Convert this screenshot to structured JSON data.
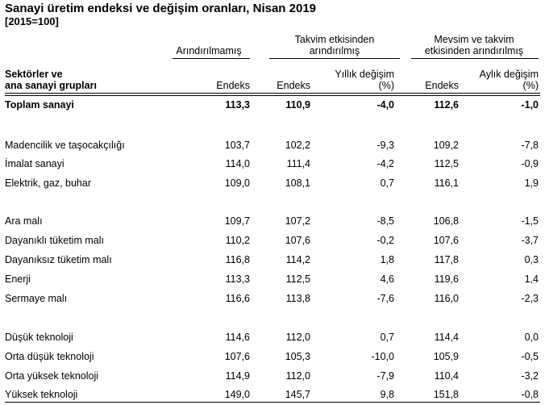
{
  "title": "Sanayi üretim endeksi ve değişim oranları, Nisan 2019",
  "subtitle": "[2015=100]",
  "groups": {
    "unadjusted": [
      "Arındırılmamış"
    ],
    "calendar": [
      "Takvim etkisinden",
      "arındırılmış"
    ],
    "seasonal": [
      "Mevsim ve takvim",
      "etkisinden arındırılmış"
    ]
  },
  "row_header": [
    "Sektörler ve",
    "ana sanayi grupları"
  ],
  "columns": {
    "c1": [
      "Endeks"
    ],
    "c2": [
      "Endeks"
    ],
    "c3": [
      "Yıllık değişim",
      "(%)"
    ],
    "c4": [
      "Endeks"
    ],
    "c5": [
      "Aylık değişim",
      "(%)"
    ]
  },
  "rows": [
    {
      "label": "Toplam sanayi",
      "v": [
        "113,3",
        "110,9",
        "-4,0",
        "112,6",
        "-1,0"
      ]
    },
    {
      "label": "Madencilik ve taşocakçılığı",
      "v": [
        "103,7",
        "102,2",
        "-9,3",
        "109,2",
        "-7,8"
      ]
    },
    {
      "label": "İmalat sanayi",
      "v": [
        "114,0",
        "111,4",
        "-4,2",
        "112,5",
        "-0,9"
      ]
    },
    {
      "label": "Elektrik, gaz, buhar",
      "v": [
        "109,0",
        "108,1",
        "0,7",
        "116,1",
        "1,9"
      ]
    },
    {
      "label": "Ara malı",
      "v": [
        "109,7",
        "107,2",
        "-8,5",
        "106,8",
        "-1,5"
      ]
    },
    {
      "label": "Dayanıklı tüketim malı",
      "v": [
        "110,2",
        "107,6",
        "-0,2",
        "107,6",
        "-3,7"
      ]
    },
    {
      "label": "Dayanıksız tüketim malı",
      "v": [
        "116,8",
        "114,2",
        "1,8",
        "117,8",
        "0,3"
      ]
    },
    {
      "label": "Enerji",
      "v": [
        "113,3",
        "112,5",
        "4,6",
        "119,6",
        "1,4"
      ]
    },
    {
      "label": "Sermaye malı",
      "v": [
        "116,6",
        "113,8",
        "-7,6",
        "116,0",
        "-2,3"
      ]
    },
    {
      "label": "Düşük teknoloji",
      "v": [
        "114,6",
        "112,0",
        "0,7",
        "114,4",
        "0,0"
      ]
    },
    {
      "label": "Orta düşük teknoloji",
      "v": [
        "107,6",
        "105,3",
        "-10,0",
        "105,9",
        "-0,5"
      ]
    },
    {
      "label": "Orta yüksek teknoloji",
      "v": [
        "114,9",
        "112,0",
        "-7,9",
        "110,4",
        "-3,2"
      ]
    },
    {
      "label": "Yüksek teknoloji",
      "v": [
        "149,0",
        "145,7",
        "9,8",
        "151,8",
        "-0,8"
      ]
    }
  ]
}
